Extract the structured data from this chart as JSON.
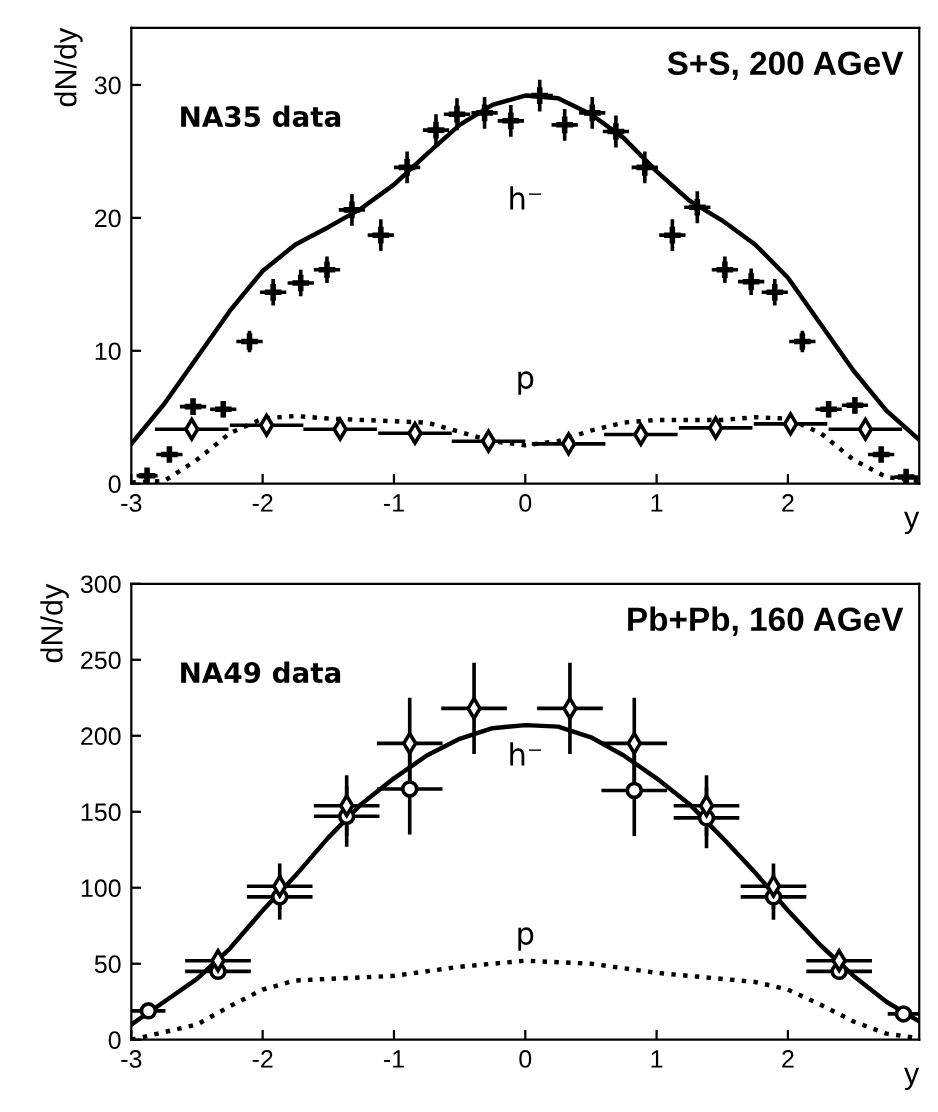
{
  "chart_data": [
    {
      "type": "scatter",
      "title": "S+S, 200 AGeV",
      "xlabel": "y",
      "ylabel": "dN/dy",
      "annotations": [
        "NA35 data",
        "h⁻",
        "p"
      ],
      "xlim": [
        -3,
        3
      ],
      "ylim": [
        0,
        34.3
      ],
      "xticks": [
        -3,
        -2,
        -1,
        0,
        1,
        2
      ],
      "yticks": [
        0,
        10,
        20,
        30
      ],
      "grid": false,
      "legend": false,
      "series": [
        {
          "marker": "cross",
          "color": "#000000",
          "x": [
            -2.88,
            -2.71,
            -2.53,
            -2.3,
            -2.1,
            -1.92,
            -1.71,
            -1.51,
            -1.32,
            -1.1,
            -0.9,
            -0.68,
            -0.52,
            -0.31,
            -0.11,
            0.11,
            0.3,
            0.51,
            0.69,
            0.91,
            1.12,
            1.31,
            1.52,
            1.72,
            1.9,
            2.11,
            2.31,
            2.51,
            2.71,
            2.9
          ],
          "values": [
            0.6,
            2.2,
            5.8,
            5.6,
            10.7,
            14.4,
            15.1,
            16.1,
            20.6,
            18.7,
            23.8,
            26.6,
            27.8,
            27.9,
            27.3,
            29.2,
            27.0,
            27.9,
            26.5,
            23.8,
            18.7,
            20.8,
            16.1,
            15.2,
            14.4,
            10.7,
            5.6,
            5.9,
            2.2,
            0.5
          ],
          "errors": [
            0.5,
            0.5,
            0.6,
            0.6,
            0.8,
            1,
            1,
            1,
            1.2,
            1.2,
            1.2,
            1.2,
            1.2,
            1.2,
            1.2,
            1.2,
            1.2,
            1.2,
            1.2,
            1.2,
            1.2,
            1.2,
            1,
            1,
            1,
            0.8,
            0.6,
            0.6,
            0.5,
            0.5
          ],
          "xerrors": [
            0.08,
            0.1,
            0.1,
            0.1,
            0.1,
            0.1,
            0.1,
            0.1,
            0.1,
            0.1,
            0.1,
            0.1,
            0.1,
            0.1,
            0.1,
            0.1,
            0.1,
            0.1,
            0.1,
            0.1,
            0.1,
            0.1,
            0.1,
            0.1,
            0.1,
            0.1,
            0.1,
            0.1,
            0.1,
            0.09
          ]
        },
        {
          "marker": "diamond",
          "color": "#000000",
          "x": [
            -2.54,
            -1.97,
            -1.41,
            -0.84,
            -0.28,
            0.33,
            0.88,
            1.45,
            2.02,
            2.59
          ],
          "values": [
            4.1,
            4.4,
            4.1,
            3.8,
            3.2,
            3.0,
            3.7,
            4.2,
            4.5,
            4.1
          ],
          "xerrors": [
            0.28,
            0.28,
            0.28,
            0.28,
            0.28,
            0.28,
            0.28,
            0.28,
            0.28,
            0.28
          ]
        },
        {
          "type": "line",
          "line_style": "solid",
          "color": "#000000",
          "x": [
            -3,
            -2.75,
            -2.5,
            -2.25,
            -2,
            -1.75,
            -1.5,
            -1.25,
            -1,
            -0.75,
            -0.5,
            -0.25,
            0,
            0.25,
            0.5,
            0.75,
            1,
            1.25,
            1.5,
            1.75,
            2,
            2.25,
            2.5,
            2.75,
            3
          ],
          "values": [
            3.0,
            6,
            9.5,
            13,
            16,
            18,
            19.3,
            20.7,
            22.5,
            24.8,
            27,
            28.5,
            29.2,
            29,
            27.8,
            26,
            23.5,
            21.3,
            19.8,
            18,
            15.5,
            12,
            8.5,
            5.5,
            3.3
          ]
        },
        {
          "type": "line",
          "line_style": "dotted",
          "color": "#000000",
          "x": [
            -3,
            -2.75,
            -2.5,
            -2.25,
            -2,
            -1.75,
            -1.5,
            -1,
            -0.75,
            -0.5,
            -0.25,
            0,
            0.25,
            0.5,
            0.75,
            1,
            1.5,
            1.75,
            2,
            2.25,
            2.5,
            2.75,
            3
          ],
          "values": [
            0.1,
            0.2,
            1.8,
            3.8,
            4.9,
            5.1,
            4.9,
            4.7,
            4.6,
            3.9,
            3.2,
            2.9,
            3.2,
            4.0,
            4.6,
            4.8,
            4.8,
            5.0,
            4.9,
            3.8,
            1.8,
            0.5,
            0.2
          ]
        }
      ]
    },
    {
      "type": "scatter",
      "title": "Pb+Pb, 160 AGeV",
      "xlabel": "y",
      "ylabel": "dN/dy",
      "annotations": [
        "NA49 data",
        "h⁻",
        "p"
      ],
      "xlim": [
        -3,
        3
      ],
      "ylim": [
        0,
        300
      ],
      "xticks": [
        -3,
        -2,
        -1,
        0,
        1,
        2
      ],
      "yticks": [
        0,
        50,
        100,
        150,
        200,
        250,
        300
      ],
      "grid": false,
      "legend": false,
      "series": [
        {
          "marker": "diamond",
          "color": "#000000",
          "x": [
            -2.34,
            -1.87,
            -1.36,
            -0.88,
            -0.39,
            0.34,
            0.83,
            1.38,
            1.89,
            2.39
          ],
          "values": [
            52,
            101,
            154,
            195,
            218,
            218,
            195,
            154,
            101,
            52
          ],
          "errors": [
            5,
            15,
            20,
            30,
            30,
            30,
            30,
            20,
            15,
            5
          ],
          "xerrors": [
            0.25,
            0.25,
            0.25,
            0.25,
            0.25,
            0.25,
            0.25,
            0.25,
            0.25,
            0.25
          ]
        },
        {
          "marker": "circle",
          "color": "#000000",
          "x": [
            -2.87,
            -2.34,
            -1.87,
            -1.36,
            -0.88,
            0.83,
            1.38,
            1.89,
            2.39,
            2.88
          ],
          "values": [
            19,
            45,
            94,
            147,
            165,
            164,
            146,
            94,
            45,
            17
          ],
          "errors": [
            5,
            5,
            15,
            20,
            30,
            30,
            20,
            15,
            5,
            5
          ],
          "xerrors": [
            0.13,
            0.25,
            0.25,
            0.25,
            0.25,
            0.25,
            0.25,
            0.25,
            0.25,
            0.12
          ]
        },
        {
          "type": "line",
          "line_style": "solid",
          "color": "#000000",
          "x": [
            -3,
            -2.75,
            -2.5,
            -2.25,
            -2,
            -1.75,
            -1.5,
            -1.25,
            -1,
            -0.75,
            -0.5,
            -0.25,
            0,
            0.25,
            0.5,
            0.75,
            1,
            1.25,
            1.5,
            1.75,
            2,
            2.25,
            2.5,
            2.75,
            3
          ],
          "values": [
            10,
            25,
            40,
            60,
            85,
            108,
            133,
            155,
            172,
            187,
            198,
            205,
            207,
            206,
            199,
            187,
            172,
            155,
            133,
            110,
            85,
            62,
            42,
            25,
            12
          ]
        },
        {
          "type": "line",
          "line_style": "dotted",
          "color": "#000000",
          "x": [
            -3,
            -2.5,
            -2.25,
            -2,
            -1.75,
            -1.5,
            -1,
            -0.5,
            0,
            0.5,
            1,
            1.5,
            1.75,
            2,
            2.25,
            2.5,
            2.75,
            3
          ],
          "values": [
            0,
            10,
            22,
            33,
            39,
            40,
            42,
            48,
            52,
            50,
            44,
            40,
            38,
            33,
            23,
            12,
            4,
            1
          ]
        }
      ]
    }
  ]
}
